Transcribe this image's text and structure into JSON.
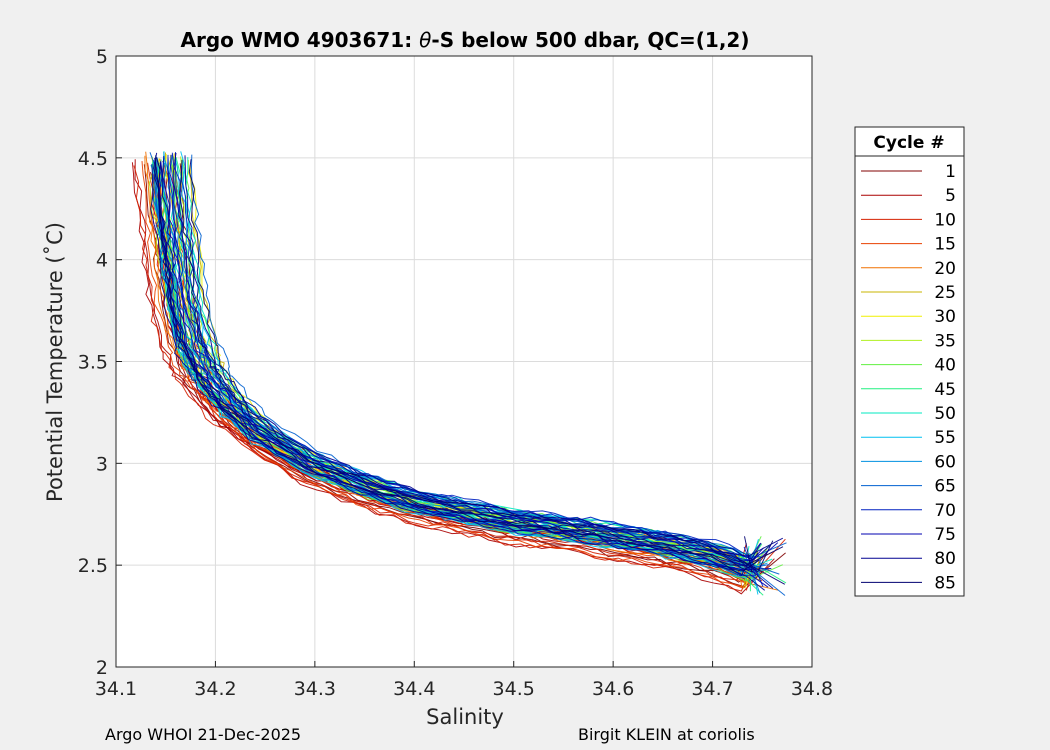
{
  "chart_data": {
    "type": "line",
    "title": "Argo WMO 4903671: θ-S below 500 dbar,  QC=(1,2)",
    "title_parts": {
      "prefix": "Argo WMO 4903671: ",
      "theta": "θ",
      "suffix": "-S below 500 dbar,  QC=(1,2)"
    },
    "xlabel": "Salinity",
    "ylabel": "Potential Temperature (˚C)",
    "xlim": [
      34.1,
      34.8
    ],
    "ylim": [
      2,
      5
    ],
    "xticks": [
      "34.1",
      "34.2",
      "34.3",
      "34.4",
      "34.5",
      "34.6",
      "34.7",
      "34.8"
    ],
    "yticks": [
      "2",
      "2.5",
      "3",
      "3.5",
      "4",
      "4.5",
      "5"
    ],
    "grid": true,
    "legend": {
      "title": "Cycle #",
      "placement": "right",
      "entries": [
        {
          "label": "1",
          "color": "#800000"
        },
        {
          "label": "5",
          "color": "#aa0000"
        },
        {
          "label": "10",
          "color": "#d42000"
        },
        {
          "label": "15",
          "color": "#e84000"
        },
        {
          "label": "20",
          "color": "#f07000"
        },
        {
          "label": "25",
          "color": "#c8b400"
        },
        {
          "label": "30",
          "color": "#f0f000"
        },
        {
          "label": "35",
          "color": "#b0f020"
        },
        {
          "label": "40",
          "color": "#60f040"
        },
        {
          "label": "45",
          "color": "#20f080"
        },
        {
          "label": "50",
          "color": "#00e8c0"
        },
        {
          "label": "55",
          "color": "#00c0f0"
        },
        {
          "label": "60",
          "color": "#0090e0"
        },
        {
          "label": "65",
          "color": "#0060d0"
        },
        {
          "label": "70",
          "color": "#0020c0"
        },
        {
          "label": "75",
          "color": "#0000b0"
        },
        {
          "label": "80",
          "color": "#000090"
        },
        {
          "label": "85",
          "color": "#000070"
        }
      ]
    },
    "series_base_curve": {
      "x": [
        34.155,
        34.16,
        34.165,
        34.17,
        34.18,
        34.19,
        34.2,
        34.22,
        34.25,
        34.3,
        34.35,
        34.4,
        34.45,
        34.5,
        34.55,
        34.6,
        34.65,
        34.7,
        34.75
      ],
      "y": [
        4.5,
        4.2,
        4.0,
        3.8,
        3.6,
        3.48,
        3.4,
        3.28,
        3.15,
        3.0,
        2.9,
        2.82,
        2.77,
        2.72,
        2.69,
        2.65,
        2.61,
        2.56,
        2.47
      ]
    }
  },
  "footer": {
    "left": "Argo WHOI 21-Dec-2025",
    "right": "Birgit KLEIN at coriolis"
  }
}
